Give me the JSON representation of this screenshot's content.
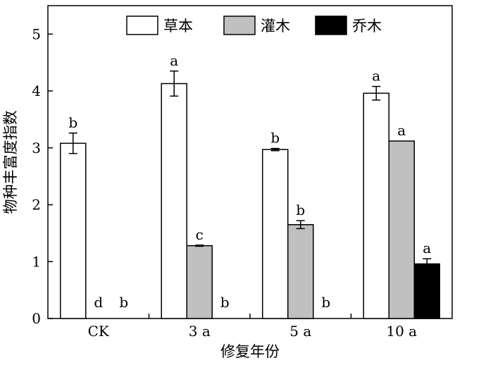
{
  "chart_data": {
    "type": "bar",
    "xlabel": "修复年份",
    "ylabel": "物种丰富度指数",
    "ylim": [
      0,
      5.5
    ],
    "yticks": [
      0,
      1,
      2,
      3,
      4,
      5
    ],
    "grid": false,
    "legend_position": "top-center",
    "categories": [
      "CK",
      "3 a",
      "5 a",
      "10 a"
    ],
    "series": [
      {
        "name": "草本",
        "color": "#ffffff",
        "values": [
          3.08,
          4.13,
          2.97,
          3.96
        ],
        "errors": [
          0.18,
          0.22,
          0.02,
          0.12
        ],
        "labels": [
          "b",
          "a",
          "b",
          "a"
        ]
      },
      {
        "name": "灌木",
        "color": "#c0c0c0",
        "values": [
          0,
          1.28,
          1.65,
          3.12
        ],
        "errors": [
          0,
          0.01,
          0.07,
          0
        ],
        "labels": [
          "d",
          "c",
          "b",
          "a"
        ]
      },
      {
        "name": "乔木",
        "color": "#000000",
        "values": [
          0,
          0,
          0,
          0.96
        ],
        "errors": [
          0,
          0,
          0,
          0.09
        ],
        "labels": [
          "b",
          "b",
          "b",
          "a"
        ]
      }
    ]
  }
}
